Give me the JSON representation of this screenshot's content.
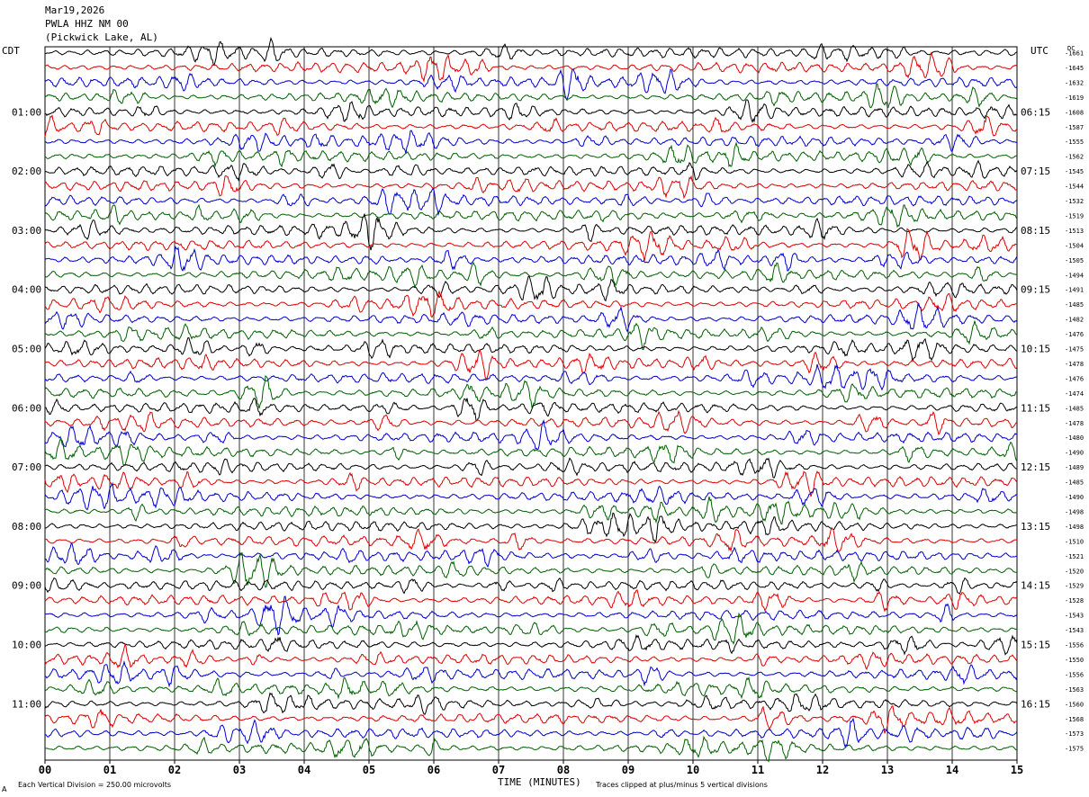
{
  "header": {
    "date": "Mar19,2026",
    "station": "PWLA HHZ NM 00",
    "location": "(Pickwick Lake, AL)"
  },
  "left_tz": "CDT",
  "right_tz": "UTC",
  "right_corner_label": "DC",
  "footer": {
    "scale_note": "Each Vertical Division =  250.00 microvolts",
    "xlabel": "TIME (MINUTES)",
    "clip_note": "Traces clipped at plus/minus 5 vertical divisions",
    "mark": "A"
  },
  "colors": {
    "cycle": [
      "#000000",
      "#e00000",
      "#0000d0",
      "#006000"
    ],
    "grid": "#000000"
  },
  "chart_data": {
    "type": "line",
    "title": "",
    "xlabel": "TIME (MINUTES)",
    "ylabel": "",
    "x_ticks": [
      "00",
      "01",
      "02",
      "03",
      "04",
      "05",
      "06",
      "07",
      "08",
      "09",
      "10",
      "11",
      "12",
      "13",
      "14",
      "15"
    ],
    "xlim": [
      0,
      15
    ],
    "trace_count": 48,
    "traces_per_hour": 4,
    "left_hour_labels": [
      "01:00",
      "02:00",
      "03:00",
      "04:00",
      "05:00",
      "06:00",
      "07:00",
      "08:00",
      "09:00",
      "10:00",
      "11:00"
    ],
    "right_hour_labels": [
      "06:15",
      "07:15",
      "08:15",
      "09:15",
      "10:15",
      "11:15",
      "12:15",
      "13:15",
      "14:15",
      "15:15",
      "16:15"
    ],
    "hour_label_start_trace": 4,
    "dc_offsets": [
      "-1661",
      "-1645",
      "-1632",
      "-1619",
      "-1608",
      "-1587",
      "-1555",
      "-1562",
      "-1545",
      "-1544",
      "-1532",
      "-1519",
      "-1513",
      "-1504",
      "-1505",
      "-1494",
      "-1491",
      "-1485",
      "-1482",
      "-1476",
      "-1475",
      "-1478",
      "-1476",
      "-1474",
      "-1485",
      "-1478",
      "-1480",
      "-1490",
      "-1489",
      "-1485",
      "-1490",
      "-1498",
      "-1498",
      "-1510",
      "-1521",
      "-1520",
      "-1529",
      "-1528",
      "-1543",
      "-1543",
      "-1556",
      "-1550",
      "-1556",
      "-1563",
      "-1560",
      "-1568",
      "-1573",
      "-1575"
    ],
    "amplitude_divisions": 0.5,
    "clip_divisions": 5,
    "microvolts_per_division": 250.0,
    "grid": true
  }
}
